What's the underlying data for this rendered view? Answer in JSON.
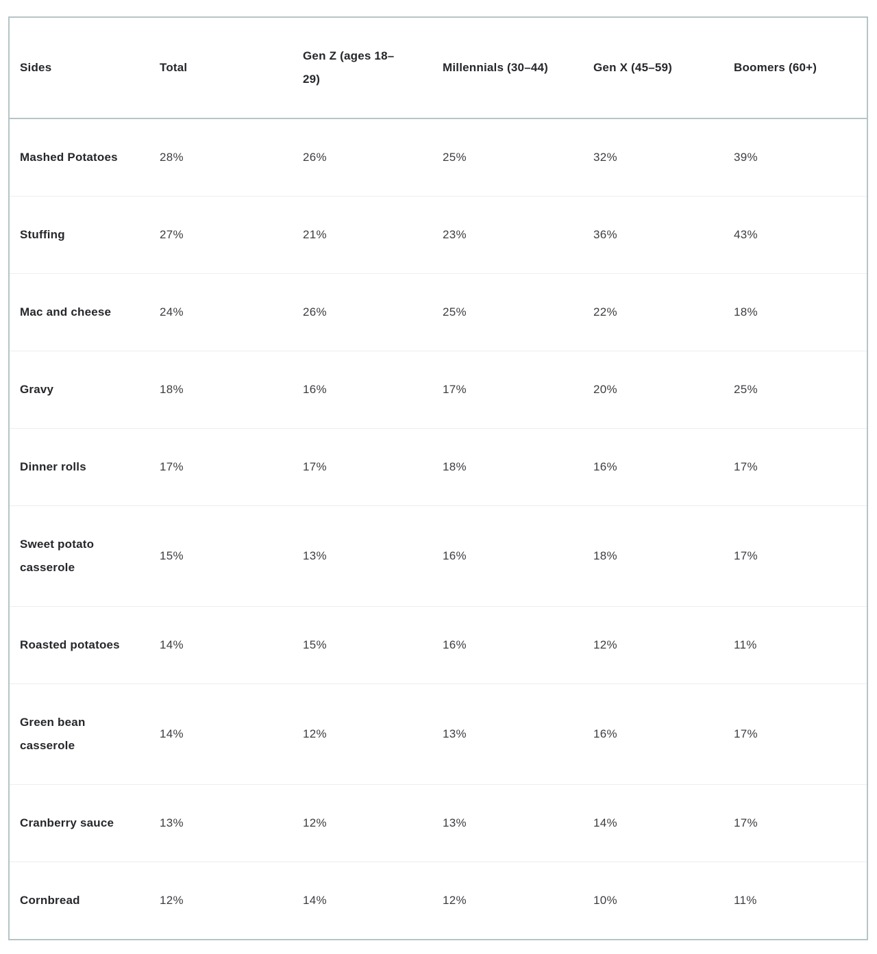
{
  "header": {
    "labels": [
      "Sides",
      "Total",
      "Gen Z (ages 18–29)",
      "Millennials (30–44)",
      "Gen X (45–59)",
      "Boomers (60+)"
    ]
  },
  "chart_data": {
    "type": "table",
    "title": "",
    "unit": "%",
    "categories": [
      "Mashed Potatoes",
      "Stuffing",
      "Mac and cheese",
      "Gravy",
      "Dinner rolls",
      "Sweet potato casserole",
      "Roasted potatoes",
      "Green bean casserole",
      "Cranberry sauce",
      "Cornbread"
    ],
    "series": [
      {
        "name": "Total",
        "values": [
          28,
          27,
          24,
          18,
          17,
          15,
          14,
          14,
          13,
          12
        ]
      },
      {
        "name": "Gen Z (ages 18–29)",
        "values": [
          26,
          21,
          26,
          16,
          17,
          13,
          15,
          12,
          12,
          14
        ]
      },
      {
        "name": "Millennials (30–44)",
        "values": [
          25,
          23,
          25,
          17,
          18,
          16,
          16,
          13,
          13,
          12
        ]
      },
      {
        "name": "Gen X (45–59)",
        "values": [
          32,
          36,
          22,
          20,
          16,
          18,
          12,
          16,
          14,
          10
        ]
      },
      {
        "name": "Boomers (60+)",
        "values": [
          39,
          43,
          18,
          25,
          17,
          17,
          11,
          17,
          17,
          11
        ]
      }
    ]
  },
  "colors": {
    "border": "#b5c4c6",
    "row_divider": "#ededed",
    "header_text": "#26272b",
    "value_text": "#3c3d41"
  }
}
